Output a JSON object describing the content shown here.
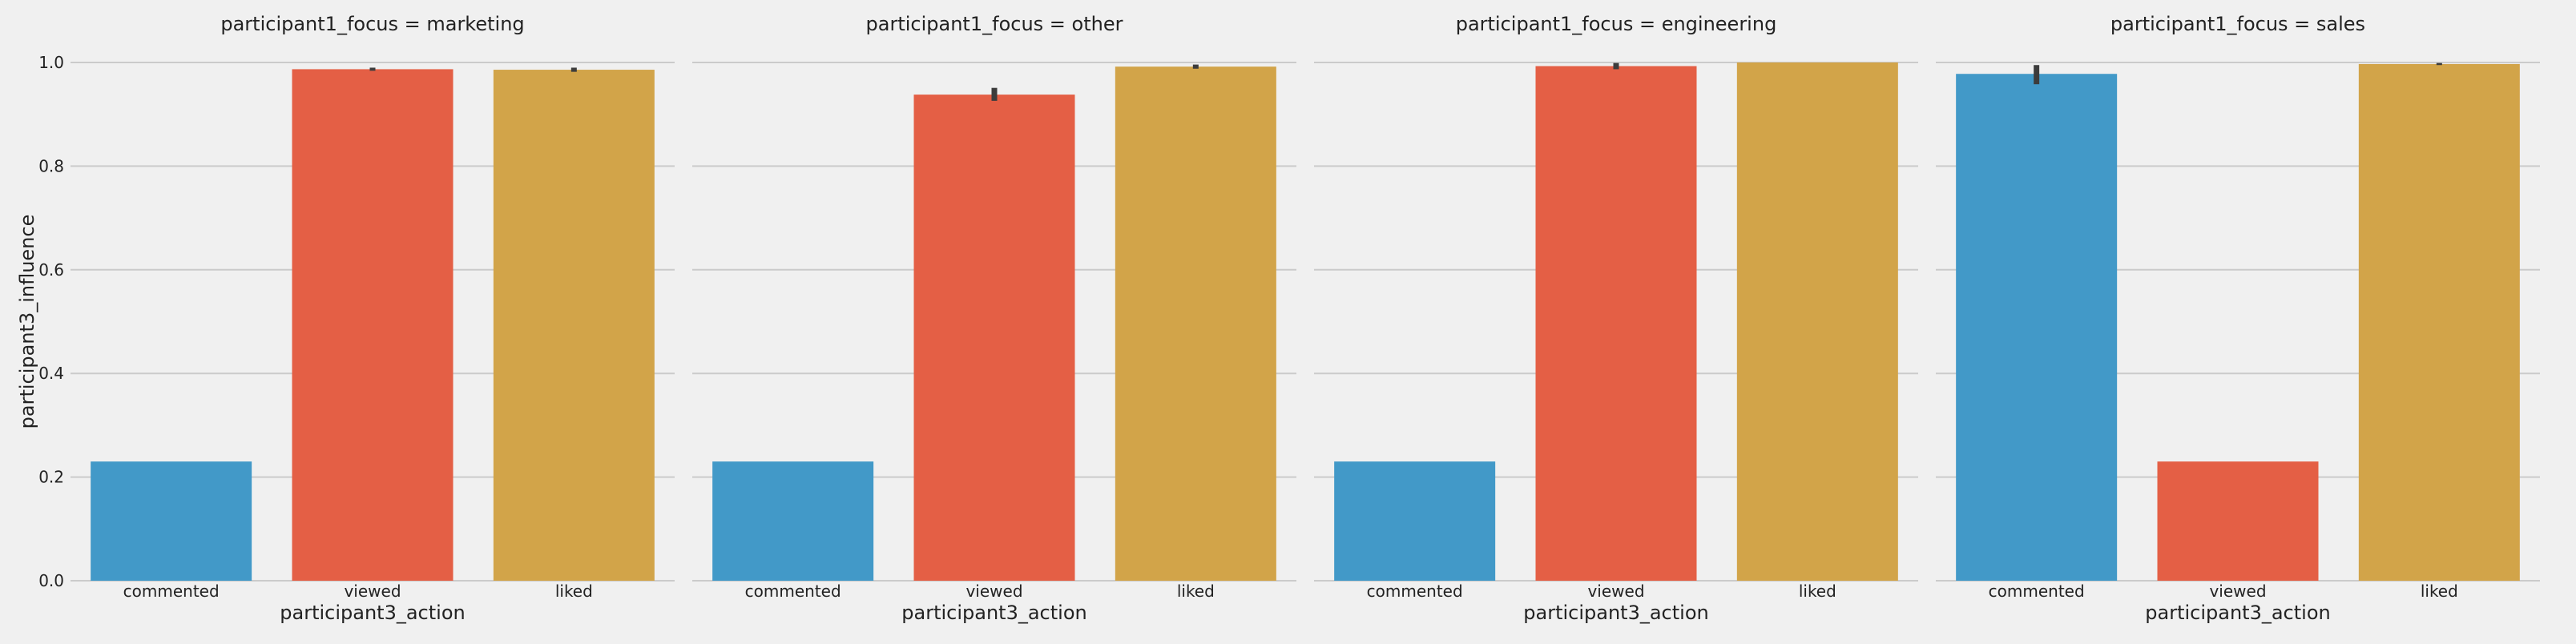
{
  "chart_data": {
    "type": "bar",
    "ylabel": "participant3_influence",
    "xlabel": "participant3_action",
    "ylim": [
      0,
      1.0
    ],
    "yticks": [
      "0.0",
      "0.2",
      "0.4",
      "0.6",
      "0.8",
      "1.0"
    ],
    "grid": true,
    "colors": {
      "commented": "#4299c8",
      "viewed": "#e45f45",
      "liked": "#d2a449",
      "errorbar": "#3c3c3c",
      "background": "#f0f0f0",
      "grid": "#cbcbcb"
    },
    "facets": [
      {
        "title": "participant1_focus = marketing",
        "categories": [
          "commented",
          "viewed",
          "liked"
        ],
        "values": [
          0.23,
          0.987,
          0.986
        ],
        "ci": [
          [
            0.23,
            0.23
          ],
          [
            0.984,
            0.99
          ],
          [
            0.982,
            0.99
          ]
        ]
      },
      {
        "title": "participant1_focus = other",
        "categories": [
          "commented",
          "viewed",
          "liked"
        ],
        "values": [
          0.23,
          0.938,
          0.992
        ],
        "ci": [
          [
            0.23,
            0.23
          ],
          [
            0.926,
            0.951
          ],
          [
            0.988,
            0.996
          ]
        ]
      },
      {
        "title": "participant1_focus = engineering",
        "categories": [
          "commented",
          "viewed",
          "liked"
        ],
        "values": [
          0.23,
          0.993,
          1.0
        ],
        "ci": [
          [
            0.23,
            0.23
          ],
          [
            0.987,
            0.999
          ],
          [
            1.0,
            1.0
          ]
        ]
      },
      {
        "title": "participant1_focus = sales",
        "categories": [
          "commented",
          "viewed",
          "liked"
        ],
        "values": [
          0.978,
          0.23,
          0.997
        ],
        "ci": [
          [
            0.958,
            0.995
          ],
          [
            0.23,
            0.23
          ],
          [
            0.995,
            0.999
          ]
        ]
      }
    ]
  }
}
